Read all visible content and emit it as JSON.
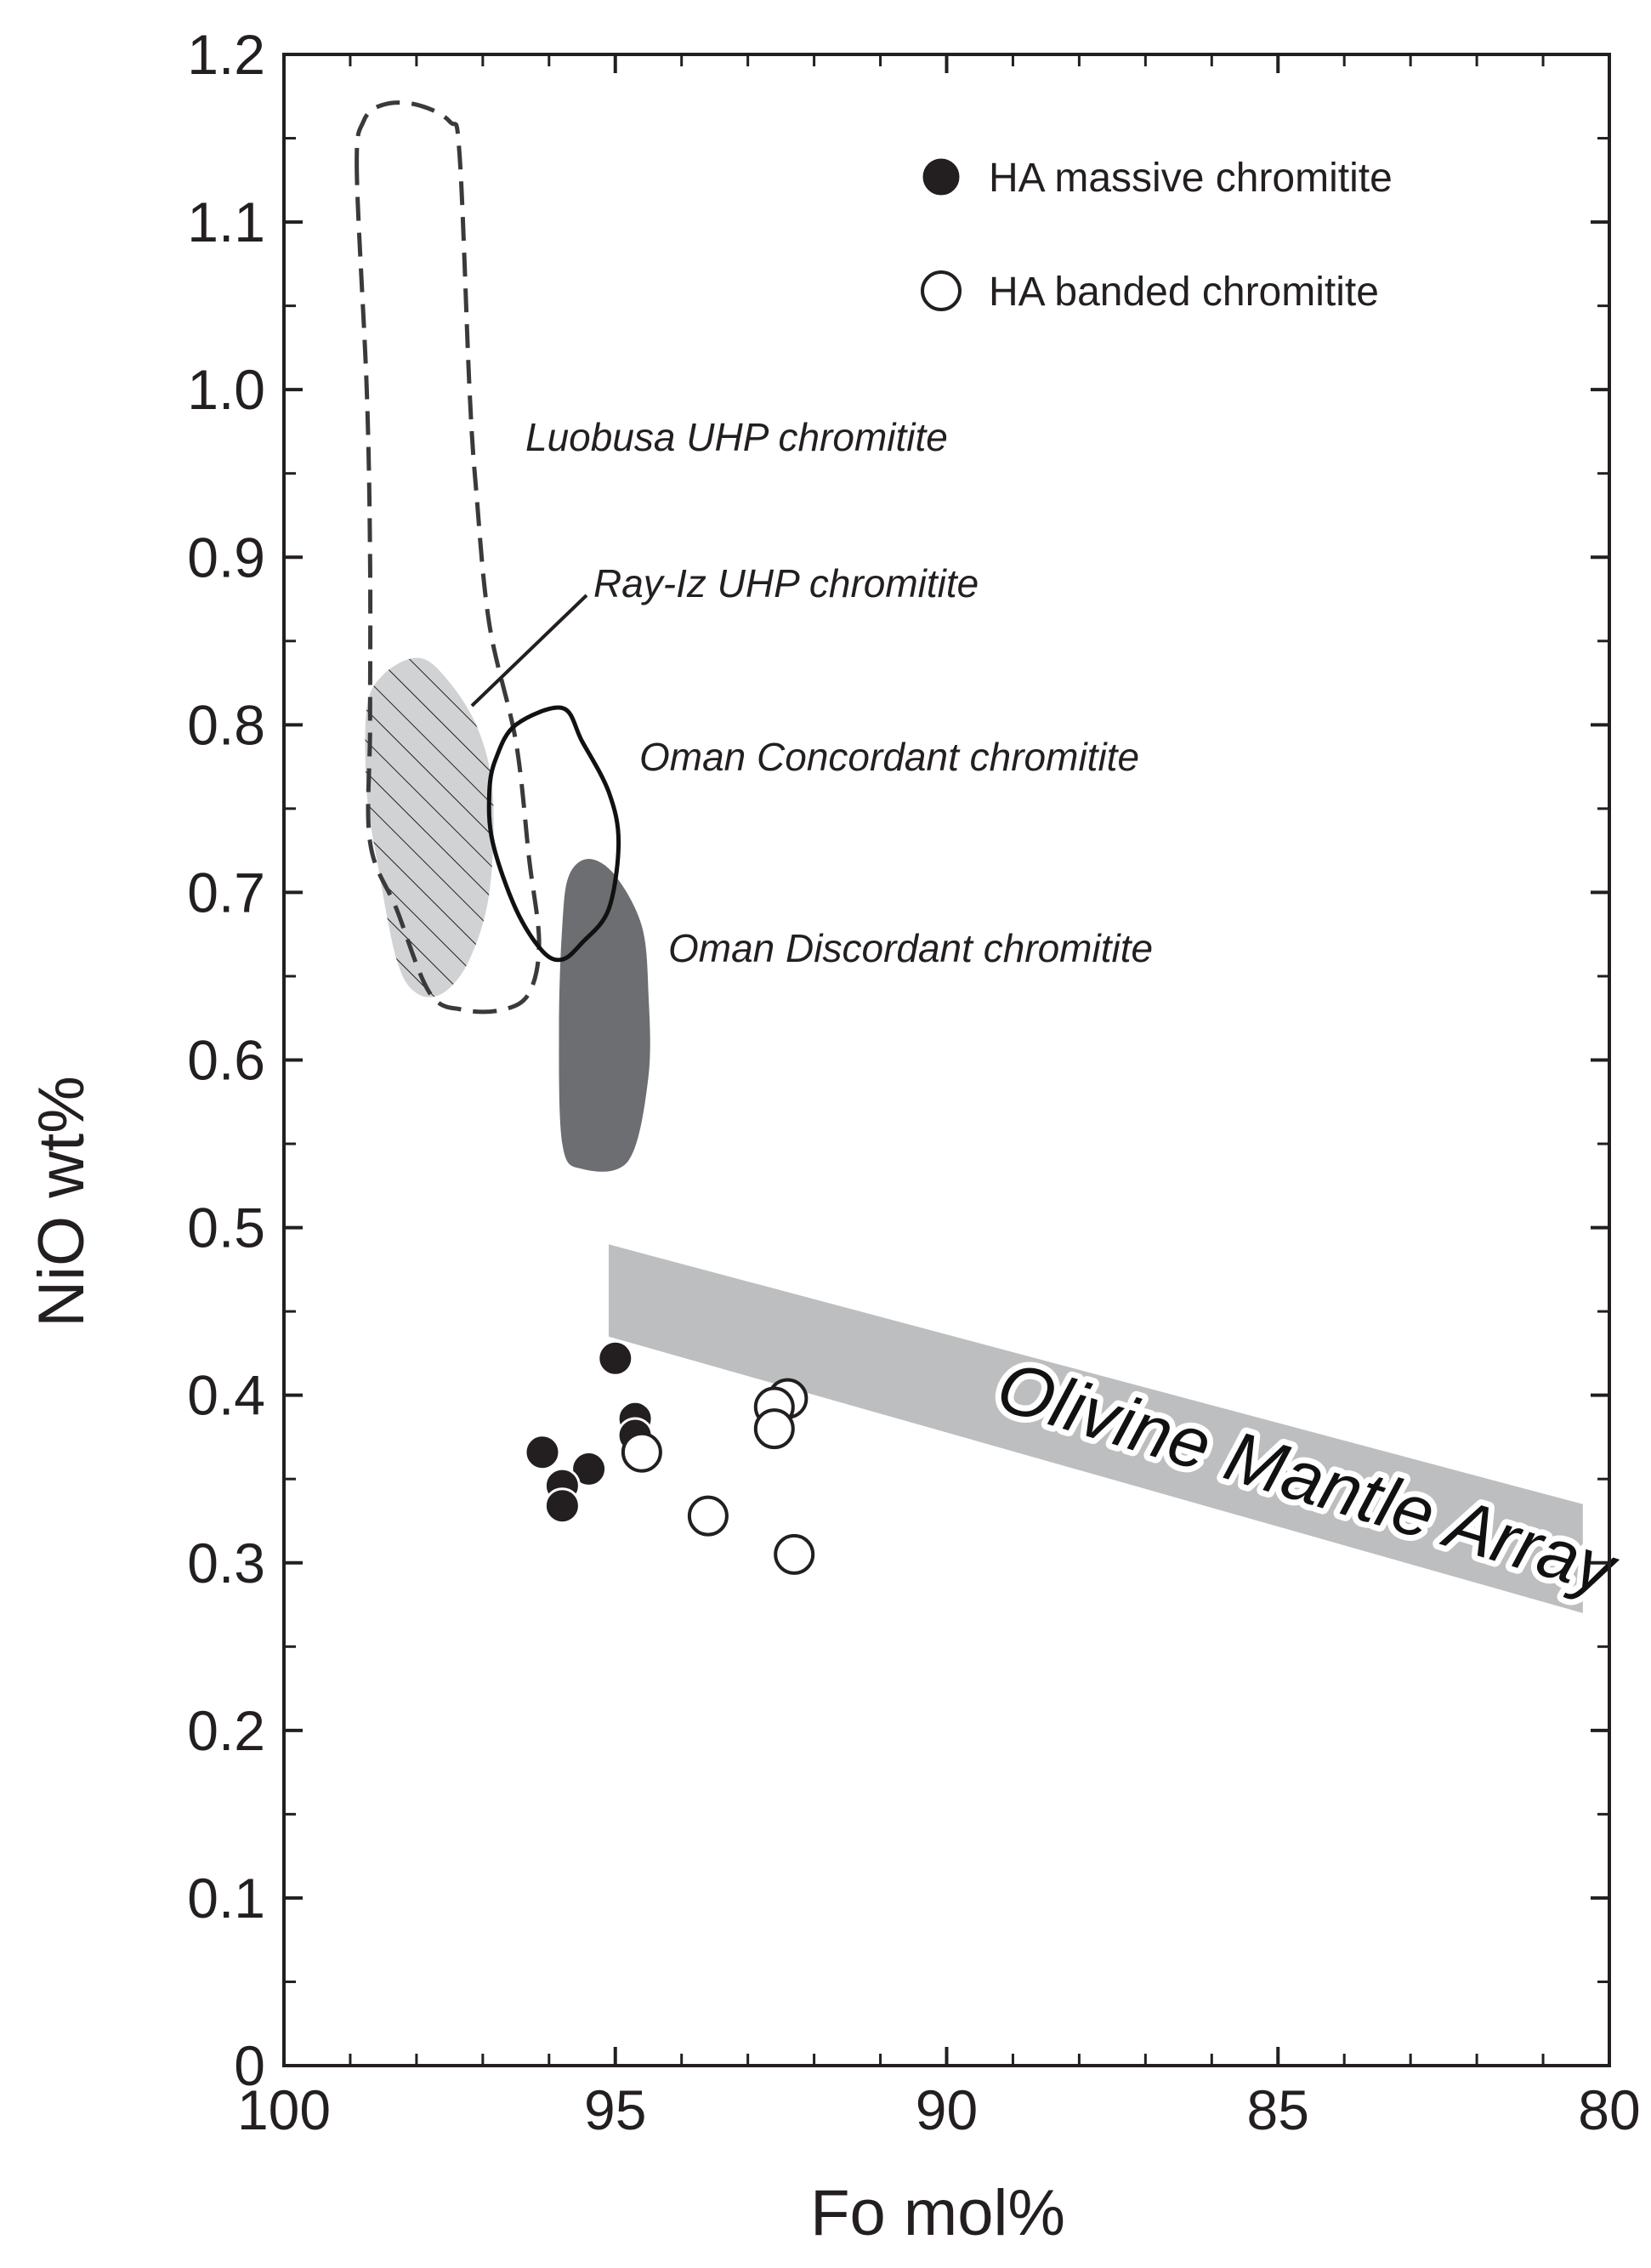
{
  "chart_data": {
    "type": "scatter",
    "xlabel": "Fo mol%",
    "ylabel": "NiO wt%",
    "xlim": [
      100,
      80
    ],
    "ylim": [
      0,
      1.2
    ],
    "x_ticks": [
      "100",
      "95",
      "90",
      "85",
      "80"
    ],
    "y_ticks": [
      "0",
      "0.1",
      "0.2",
      "0.3",
      "0.4",
      "0.5",
      "0.6",
      "0.7",
      "0.8",
      "0.9",
      "1.0",
      "1.1",
      "1.2"
    ],
    "series": [
      {
        "name": "HA massive chromitite",
        "marker": "filled-circle",
        "points": [
          {
            "x": 95.0,
            "y": 0.422
          },
          {
            "x": 94.7,
            "y": 0.386
          },
          {
            "x": 94.7,
            "y": 0.376
          },
          {
            "x": 96.1,
            "y": 0.366
          },
          {
            "x": 95.4,
            "y": 0.356
          },
          {
            "x": 95.8,
            "y": 0.346
          },
          {
            "x": 95.8,
            "y": 0.334
          }
        ]
      },
      {
        "name": "HA banded chromitite",
        "marker": "open-circle",
        "points": [
          {
            "x": 92.4,
            "y": 0.398
          },
          {
            "x": 92.6,
            "y": 0.393
          },
          {
            "x": 92.6,
            "y": 0.38
          },
          {
            "x": 94.6,
            "y": 0.366
          },
          {
            "x": 93.6,
            "y": 0.328
          },
          {
            "x": 92.3,
            "y": 0.305
          }
        ]
      }
    ],
    "fields": [
      {
        "name": "Luobusa UHP chromitite",
        "style": "dashed-outline",
        "polygon": [
          [
            98.9,
            1.13
          ],
          [
            98.8,
            1.16
          ],
          [
            98.5,
            1.17
          ],
          [
            98.0,
            1.17
          ],
          [
            97.5,
            1.16
          ],
          [
            97.35,
            1.14
          ],
          [
            97.2,
            1.0
          ],
          [
            97.1,
            0.94
          ],
          [
            96.9,
            0.86
          ],
          [
            96.5,
            0.79
          ],
          [
            96.3,
            0.72
          ],
          [
            96.15,
            0.67
          ],
          [
            96.3,
            0.64
          ],
          [
            96.7,
            0.63
          ],
          [
            97.3,
            0.63
          ],
          [
            97.8,
            0.64
          ],
          [
            98.3,
            0.69
          ],
          [
            98.7,
            0.73
          ],
          [
            98.7,
            0.8
          ],
          [
            98.7,
            0.9
          ],
          [
            98.75,
            1.0
          ]
        ]
      },
      {
        "name": "Ray-Iz UHP chromitite",
        "style": "light-fill-hatched",
        "polygon": [
          [
            98.75,
            0.81
          ],
          [
            98.5,
            0.83
          ],
          [
            98.0,
            0.84
          ],
          [
            97.6,
            0.83
          ],
          [
            97.1,
            0.8
          ],
          [
            96.85,
            0.76
          ],
          [
            96.9,
            0.7
          ],
          [
            97.2,
            0.66
          ],
          [
            97.6,
            0.64
          ],
          [
            98.0,
            0.64
          ],
          [
            98.3,
            0.66
          ],
          [
            98.6,
            0.72
          ],
          [
            98.75,
            0.76
          ]
        ]
      },
      {
        "name": "Oman Concordant chromitite",
        "style": "solid-outline",
        "polygon": [
          [
            96.8,
            0.78
          ],
          [
            96.5,
            0.8
          ],
          [
            95.8,
            0.81
          ],
          [
            95.5,
            0.79
          ],
          [
            95.1,
            0.76
          ],
          [
            94.95,
            0.73
          ],
          [
            95.1,
            0.69
          ],
          [
            95.5,
            0.67
          ],
          [
            95.8,
            0.66
          ],
          [
            96.1,
            0.665
          ],
          [
            96.5,
            0.69
          ],
          [
            96.85,
            0.73
          ],
          [
            96.9,
            0.76
          ]
        ]
      },
      {
        "name": "Oman Discordant chromitite",
        "style": "dark-fill",
        "polygon": [
          [
            95.7,
            0.71
          ],
          [
            95.4,
            0.72
          ],
          [
            95.0,
            0.71
          ],
          [
            94.6,
            0.68
          ],
          [
            94.5,
            0.64
          ],
          [
            94.5,
            0.59
          ],
          [
            94.8,
            0.54
          ],
          [
            95.5,
            0.535
          ],
          [
            95.8,
            0.55
          ],
          [
            95.85,
            0.62
          ],
          [
            95.8,
            0.68
          ]
        ]
      },
      {
        "name": "Olivine Mantle Array",
        "style": "grey-band",
        "polygon": [
          [
            95.1,
            0.49
          ],
          [
            80.4,
            0.335
          ],
          [
            80.4,
            0.27
          ],
          [
            95.1,
            0.435
          ]
        ]
      }
    ]
  },
  "labels": {
    "luobusa": "Luobusa UHP chromitite",
    "rayiz": "Ray-Iz UHP chromitite",
    "oman_concordant": "Oman Concordant chromitite",
    "oman_discordant": "Oman Discordant chromitite",
    "olivine_array": "Olivine Mantle Array"
  },
  "colors": {
    "axis": "#231f20",
    "filled_marker": "#231f20",
    "open_marker_fill": "#ffffff",
    "rayiz_fill": "#d1d2d4",
    "discordant_fill": "#6d6e71",
    "array_fill": "#bcbec0"
  }
}
